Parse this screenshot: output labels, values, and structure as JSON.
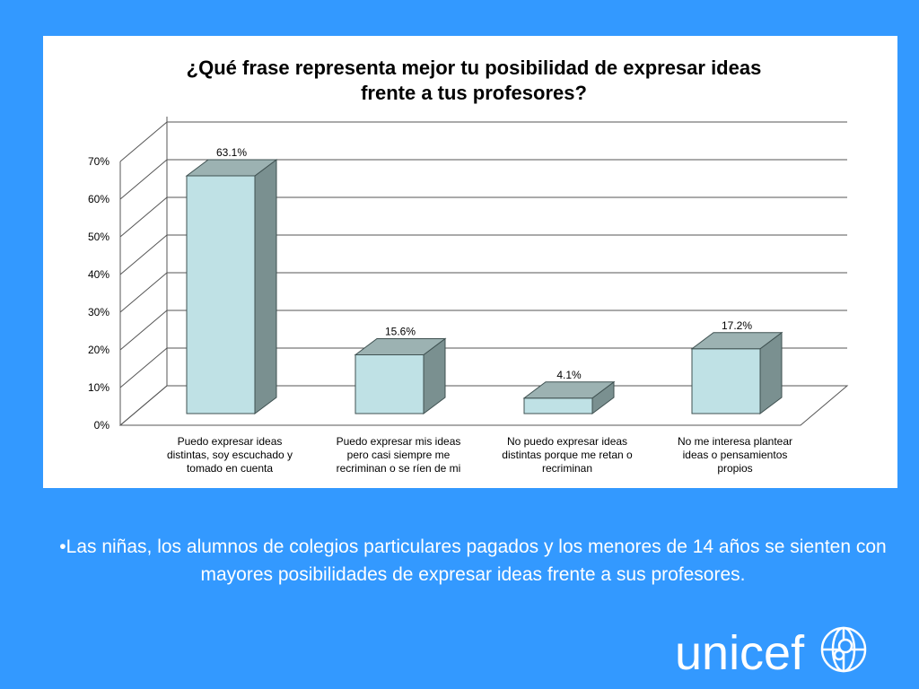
{
  "chart_data": {
    "type": "bar",
    "title_line1": "¿Qué frase representa mejor tu posibilidad de expresar ideas",
    "title_line2": "frente a tus profesores?",
    "categories": [
      [
        "Puedo expresar ideas",
        "distintas, soy escuchado y",
        "tomado en cuenta"
      ],
      [
        "Puedo expresar mis ideas",
        "pero casi siempre me",
        "recriminan o se ríen de mi"
      ],
      [
        "No puedo expresar ideas",
        "distintas porque me retan o",
        "recriminan"
      ],
      [
        "No me interesa plantear",
        "ideas o pensamientos",
        "propios"
      ]
    ],
    "values": [
      63.1,
      15.6,
      4.1,
      17.2
    ],
    "data_labels": [
      "63.1%",
      "15.6%",
      "4.1%",
      "17.2%"
    ],
    "yticks": [
      "0%",
      "10%",
      "20%",
      "30%",
      "40%",
      "50%",
      "60%",
      "70%"
    ],
    "ylim": [
      0,
      70
    ],
    "colors": {
      "front": "#bfe1e5",
      "side": "#7a9090",
      "top": "#9cb2b2",
      "grid": "#555555"
    }
  },
  "bullet": "•Las niñas, los alumnos de colegios particulares pagados y los menores de 14 años se sienten con mayores posibilidades de expresar ideas frente a sus profesores.",
  "logo": {
    "text": "unicef"
  }
}
